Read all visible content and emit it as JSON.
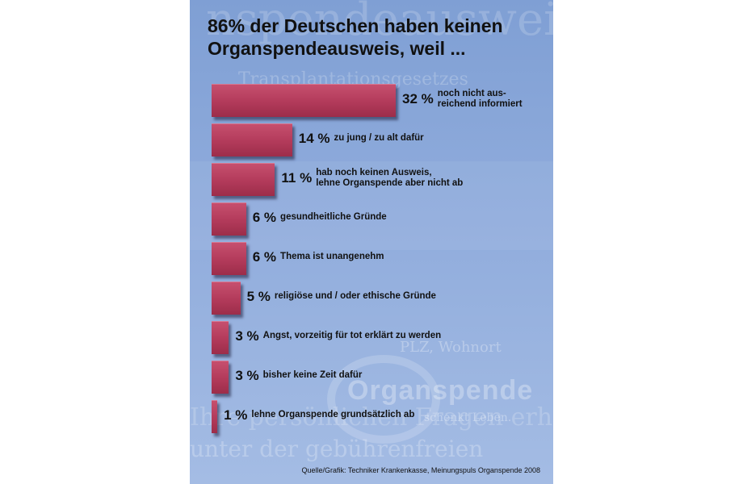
{
  "title_lines": [
    "86% der Deutschen haben keinen",
    "Organspendeausweis, weil ..."
  ],
  "source": "Quelle/Grafik: Techniker Krankenkasse, Meinungspuls Organspende 2008",
  "colors": {
    "bar": "#b23a5a",
    "background": "#8fabdc"
  },
  "chart_data": {
    "type": "bar",
    "orientation": "horizontal",
    "unit": "%",
    "categories": [
      "noch nicht ausreichend informiert",
      "zu jung / zu alt dafür",
      "hab noch keinen Ausweis, lehne Organspende aber nicht ab",
      "gesundheitliche Gründe",
      "Thema ist unangenehm",
      "religiöse und / oder ethische Gründe",
      "Angst, vorzeitig für tot erklärt zu werden",
      "bisher keine Zeit dafür",
      "lehne Organspende grundsätzlich ab"
    ],
    "values": [
      32,
      14,
      11,
      6,
      6,
      5,
      3,
      3,
      1
    ],
    "value_labels": [
      "32 %",
      "14 %",
      "11 %",
      "6 %",
      "6 %",
      "5 %",
      "3 %",
      "3 %",
      "1 %"
    ],
    "label_lines": [
      [
        "noch nicht aus-",
        "reichend informiert"
      ],
      [
        "zu jung / zu alt dafür"
      ],
      [
        "hab noch keinen Ausweis,",
        "lehne Organspende aber nicht ab"
      ],
      [
        "gesundheitliche Gründe"
      ],
      [
        "Thema ist unangenehm"
      ],
      [
        "religiöse und / oder ethische Gründe"
      ],
      [
        "Angst, vorzeitig für tot erklärt zu werden"
      ],
      [
        "bisher keine Zeit dafür"
      ],
      [
        "lehne Organspende grundsätzlich ab"
      ]
    ],
    "xlim": [
      0,
      32
    ]
  }
}
